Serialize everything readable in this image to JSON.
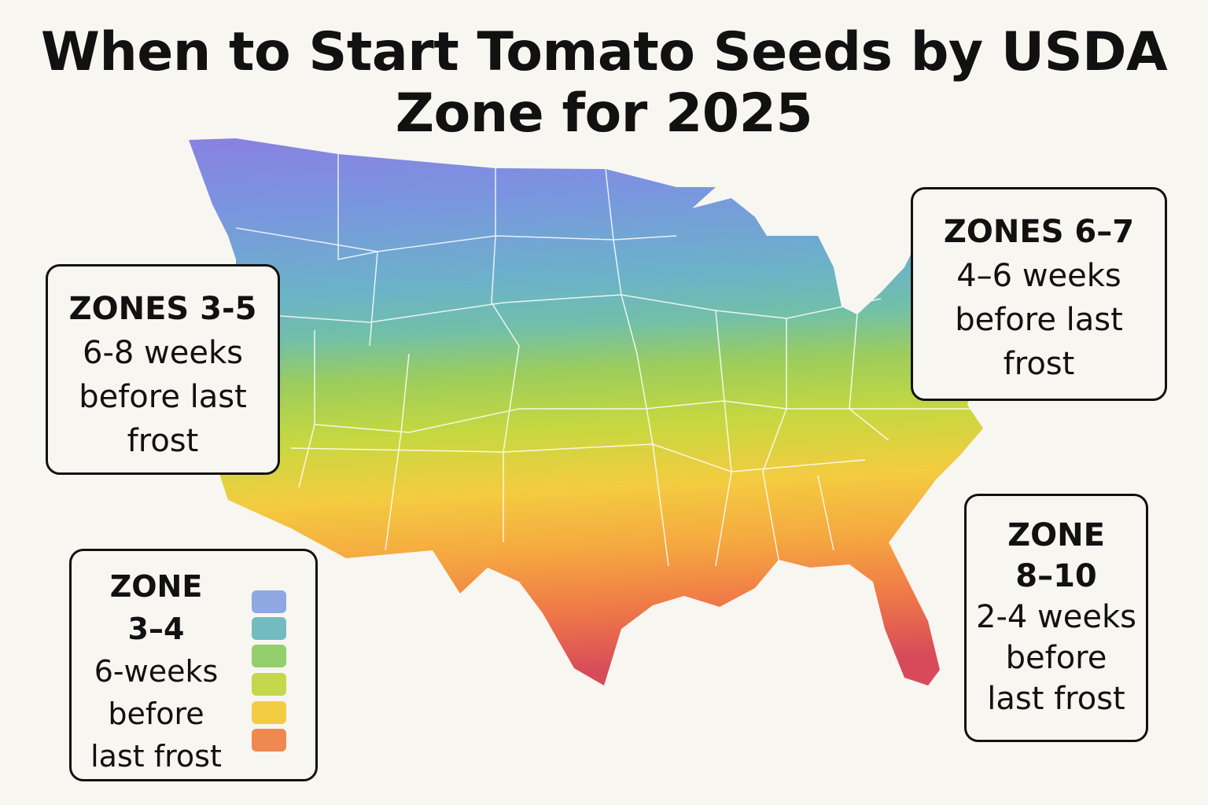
{
  "title": "When to Start Tomato Seeds by USDA Zone for 2025",
  "title_lines": [
    "When to Start Tomato Seeds by USDA",
    "Zone for 2025"
  ],
  "callouts": {
    "zones_3_5": {
      "heading": "ZONES 3-5",
      "lines": [
        "6-8 weeks",
        "before last",
        "frost"
      ]
    },
    "zones_6_7": {
      "heading": "ZONES 6–7",
      "lines": [
        "4–6 weeks",
        "before last",
        "frost"
      ]
    },
    "zones_8_10": {
      "heading": "ZONE",
      "heading2": "8–10",
      "lines": [
        "2-4 weeks",
        "before",
        "last frost"
      ]
    }
  },
  "legend": {
    "heading": "ZONE",
    "range": "3–4",
    "lines": [
      "6-weeks",
      "before",
      "last frost"
    ],
    "swatches": [
      "#8fa8e2",
      "#72bcc0",
      "#93cf6c",
      "#c3d84a",
      "#f3cc44",
      "#ee8a50"
    ]
  },
  "map_colors": [
    "#8a7fe0",
    "#7a95e0",
    "#6bb3c8",
    "#72c0a8",
    "#9ccd5c",
    "#c6d840",
    "#f4cc40",
    "#f5a840",
    "#ef7848",
    "#d84a5a"
  ]
}
